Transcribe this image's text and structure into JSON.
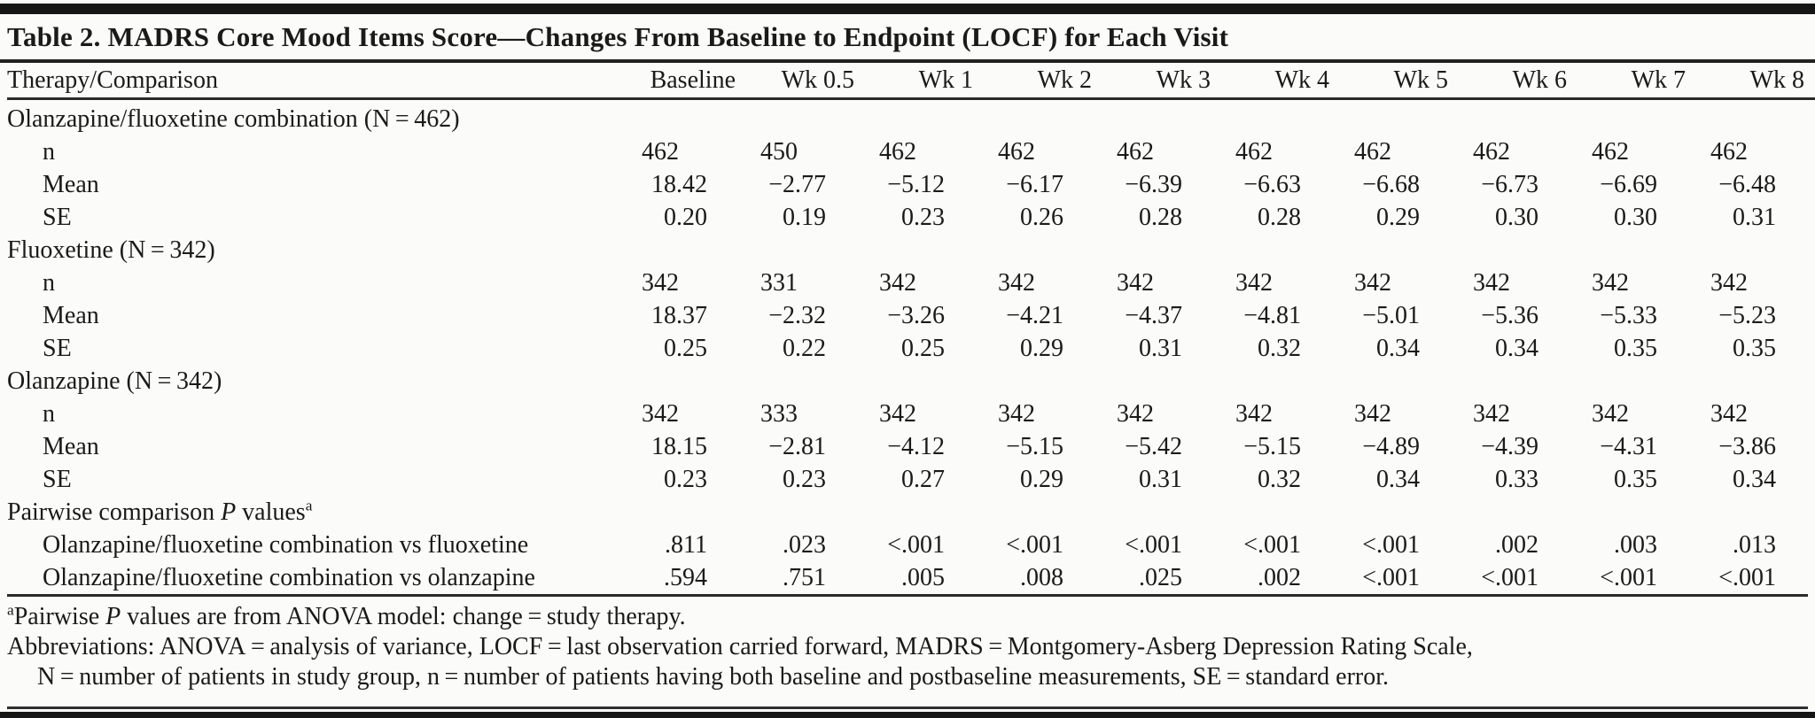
{
  "table": {
    "title": "Table 2. MADRS Core Mood Items Score—Changes From Baseline to Endpoint (LOCF) for Each Visit",
    "columns": [
      "Therapy/Comparison",
      "Baseline",
      "Wk 0.5",
      "Wk 1",
      "Wk 2",
      "Wk 3",
      "Wk 4",
      "Wk 5",
      "Wk 6",
      "Wk 7",
      "Wk 8"
    ],
    "groups": [
      {
        "label_segments": [
          {
            "t": "Olanzapine/fluoxetine combination (N = 462)"
          }
        ],
        "rows": [
          {
            "label": "n",
            "values": [
              "462",
              "450",
              "462",
              "462",
              "462",
              "462",
              "462",
              "462",
              "462",
              "462"
            ]
          },
          {
            "label": "Mean",
            "values": [
              "18.42",
              "−2.77",
              "−5.12",
              "−6.17",
              "−6.39",
              "−6.63",
              "−6.68",
              "−6.73",
              "−6.69",
              "−6.48"
            ]
          },
          {
            "label": "SE",
            "values": [
              "0.20",
              "0.19",
              "0.23",
              "0.26",
              "0.28",
              "0.28",
              "0.29",
              "0.30",
              "0.30",
              "0.31"
            ]
          }
        ]
      },
      {
        "label_segments": [
          {
            "t": "Fluoxetine (N = 342)"
          }
        ],
        "rows": [
          {
            "label": "n",
            "values": [
              "342",
              "331",
              "342",
              "342",
              "342",
              "342",
              "342",
              "342",
              "342",
              "342"
            ]
          },
          {
            "label": "Mean",
            "values": [
              "18.37",
              "−2.32",
              "−3.26",
              "−4.21",
              "−4.37",
              "−4.81",
              "−5.01",
              "−5.36",
              "−5.33",
              "−5.23"
            ]
          },
          {
            "label": "SE",
            "values": [
              "0.25",
              "0.22",
              "0.25",
              "0.29",
              "0.31",
              "0.32",
              "0.34",
              "0.34",
              "0.35",
              "0.35"
            ]
          }
        ]
      },
      {
        "label_segments": [
          {
            "t": "Olanzapine (N = 342)"
          }
        ],
        "rows": [
          {
            "label": "n",
            "values": [
              "342",
              "333",
              "342",
              "342",
              "342",
              "342",
              "342",
              "342",
              "342",
              "342"
            ]
          },
          {
            "label": "Mean",
            "values": [
              "18.15",
              "−2.81",
              "−4.12",
              "−5.15",
              "−5.42",
              "−5.15",
              "−4.89",
              "−4.39",
              "−4.31",
              "−3.86"
            ]
          },
          {
            "label": "SE",
            "values": [
              "0.23",
              "0.23",
              "0.27",
              "0.29",
              "0.31",
              "0.32",
              "0.34",
              "0.33",
              "0.35",
              "0.34"
            ]
          }
        ]
      },
      {
        "label_segments": [
          {
            "t": "Pairwise comparison "
          },
          {
            "t": "P",
            "i": true
          },
          {
            "t": " values"
          },
          {
            "t": "a",
            "sup": true
          }
        ],
        "rows": [
          {
            "label": "Olanzapine/fluoxetine combination vs fluoxetine",
            "values": [
              ".811",
              ".023",
              "<.001",
              "<.001",
              "<.001",
              "<.001",
              "<.001",
              ".002",
              ".003",
              ".013"
            ]
          },
          {
            "label": "Olanzapine/fluoxetine combination vs olanzapine",
            "values": [
              ".594",
              ".751",
              ".005",
              ".008",
              ".025",
              ".002",
              "<.001",
              "<.001",
              "<.001",
              "<.001"
            ]
          }
        ]
      }
    ],
    "footnotes": [
      {
        "indent": false,
        "segments": [
          {
            "t": "a",
            "sup": true
          },
          {
            "t": "Pairwise "
          },
          {
            "t": "P",
            "i": true
          },
          {
            "t": " values are from ANOVA model: change = study therapy."
          }
        ]
      },
      {
        "indent": false,
        "segments": [
          {
            "t": "Abbreviations: ANOVA = analysis of variance, LOCF = last observation carried forward, MADRS = Montgomery-Asberg Depression Rating Scale,"
          }
        ]
      },
      {
        "indent": true,
        "segments": [
          {
            "t": "N = number of patients in study group, n = number of patients having both baseline and postbaseline measurements, SE = standard error."
          }
        ]
      }
    ]
  }
}
